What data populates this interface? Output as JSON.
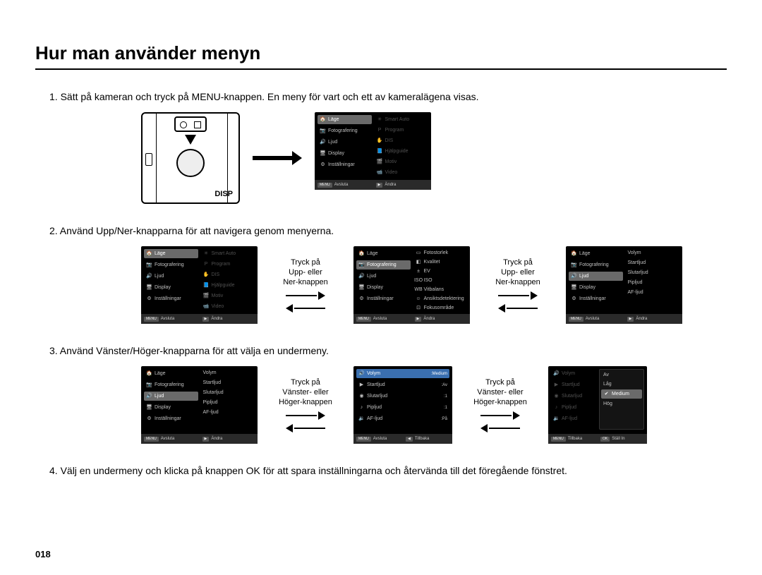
{
  "title": "Hur man använder menyn",
  "page_number": "018",
  "colors": {
    "bg": "#ffffff",
    "text": "#000000",
    "screen_bg": "#000000",
    "screen_text": "#c0c0c0",
    "screen_dim": "#505050",
    "highlight_gray": "#6a6a6a",
    "highlight_blue": "#3a6fb0",
    "footer_bg": "#2a2a2a"
  },
  "steps": {
    "s1": "1. Sätt på kameran och tryck på MENU-knappen. En meny för vart och ett av kameralägena visas.",
    "s2": "2. Använd Upp/Ner-knapparna för att navigera genom menyerna.",
    "s3": "3. Använd Vänster/Höger-knapparna för att välja en undermeny.",
    "s4": "4. Välj en undermeny och klicka på knappen OK för att spara inställningarna och återvända till det föregående fönstret."
  },
  "camera_label": "DISP",
  "between": {
    "updown": "Tryck på\nUpp- eller\nNer-knappen",
    "leftright": "Tryck på\nVänster- eller\nHöger-knappen"
  },
  "menu_main": {
    "left": [
      {
        "icon": "🏠",
        "label": "Läge"
      },
      {
        "icon": "📷",
        "label": "Fotografering"
      },
      {
        "icon": "🔊",
        "label": "Ljud"
      },
      {
        "icon": "🖥",
        "label": "Display"
      },
      {
        "icon": "⚙",
        "label": "Inställningar"
      }
    ],
    "right": [
      {
        "icon": "✳",
        "label": "Smart Auto"
      },
      {
        "icon": "P",
        "label": "Program"
      },
      {
        "icon": "✋",
        "label": "DIS"
      },
      {
        "icon": "📘",
        "label": "Hjälpguide"
      },
      {
        "icon": "🎬",
        "label": "Motiv"
      },
      {
        "icon": "📹",
        "label": "Video"
      }
    ]
  },
  "menu_foto": {
    "left_hl_index": 1,
    "right": [
      {
        "icon": "▭",
        "label": "Fotostorlek"
      },
      {
        "icon": "◧",
        "label": "Kvalitet"
      },
      {
        "icon": "±",
        "label": "EV"
      },
      {
        "icon": "ISO",
        "label": "ISO"
      },
      {
        "icon": "WB",
        "label": "Vitbalans"
      },
      {
        "icon": "☺",
        "label": "Ansiktsdetektering"
      },
      {
        "icon": "⊡",
        "label": "Fokusområde"
      }
    ]
  },
  "menu_ljud": {
    "left_hl_index": 2,
    "right": [
      {
        "label": "Volym"
      },
      {
        "label": "Startljud"
      },
      {
        "label": "Slutarljud"
      },
      {
        "label": "Pipljud"
      },
      {
        "label": "AF-ljud"
      }
    ]
  },
  "menu_ljud_values": {
    "items": [
      {
        "icon": "🔊",
        "label": "Volym",
        "value": "Medium"
      },
      {
        "icon": "▶",
        "label": "Startljud",
        "value": "Av"
      },
      {
        "icon": "◉",
        "label": "Slutarljud",
        "value": "1"
      },
      {
        "icon": "♪",
        "label": "Pipljud",
        "value": "1"
      },
      {
        "icon": "🔉",
        "label": "AF-ljud",
        "value": "På"
      }
    ],
    "hl_index": 0
  },
  "menu_volym_options": {
    "options": [
      "Av",
      "Låg",
      "Medium",
      "Hög"
    ],
    "selected_index": 2,
    "dim_left": [
      {
        "icon": "🔊",
        "label": "Volym"
      },
      {
        "icon": "▶",
        "label": "Startljud"
      },
      {
        "icon": "◉",
        "label": "Slutarljud"
      },
      {
        "icon": "♪",
        "label": "Pipljud"
      },
      {
        "icon": "🔉",
        "label": "AF-ljud"
      }
    ]
  },
  "footer": {
    "menu_tag": "MENU",
    "avsluta": "Avsluta",
    "andra": "Ändra",
    "tillbaka": "Tillbaka",
    "stallin": "Ställ In",
    "ok_tag": "OK",
    "arrow_right": "▶",
    "arrow_left": "◀"
  }
}
